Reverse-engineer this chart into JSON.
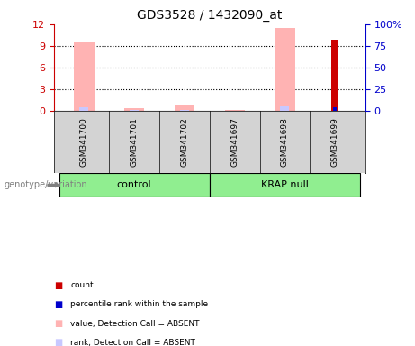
{
  "title": "GDS3528 / 1432090_at",
  "samples": [
    "GSM341700",
    "GSM341701",
    "GSM341702",
    "GSM341697",
    "GSM341698",
    "GSM341699"
  ],
  "left_ylim": [
    0,
    12
  ],
  "left_yticks": [
    0,
    3,
    6,
    9,
    12
  ],
  "right_ylim": [
    0,
    100
  ],
  "right_yticks": [
    0,
    25,
    50,
    75,
    100
  ],
  "right_yticklabels": [
    "0",
    "25",
    "50",
    "75",
    "100%"
  ],
  "value_absent": [
    9.5,
    0.3,
    0.9,
    0.15,
    11.5,
    null
  ],
  "rank_absent": [
    4.1,
    0.95,
    1.05,
    null,
    4.6,
    null
  ],
  "count": [
    null,
    null,
    null,
    null,
    null,
    9.8
  ],
  "percentile_rank": [
    null,
    null,
    null,
    null,
    null,
    3.8
  ],
  "color_value_absent": "#ffb3b3",
  "color_rank_absent": "#c8c8ff",
  "color_count": "#cc0000",
  "color_percentile": "#0000cc",
  "color_left_axis": "#cc0000",
  "color_right_axis": "#0000cc",
  "group_color": "#90ee90",
  "background_plot": "#ffffff",
  "background_sample": "#d3d3d3",
  "genotype_label": "genotype/variation",
  "control_label": "control",
  "krap_label": "KRAP null",
  "legend_items": [
    {
      "color": "#cc0000",
      "label": "count"
    },
    {
      "color": "#0000cc",
      "label": "percentile rank within the sample"
    },
    {
      "color": "#ffb3b3",
      "label": "value, Detection Call = ABSENT"
    },
    {
      "color": "#c8c8ff",
      "label": "rank, Detection Call = ABSENT"
    }
  ]
}
